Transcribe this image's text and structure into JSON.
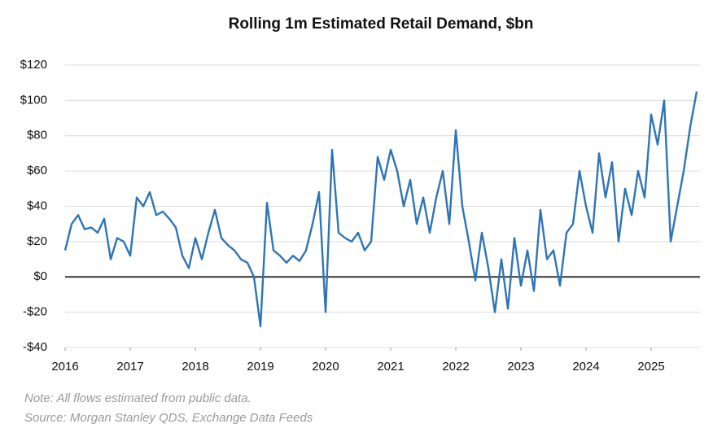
{
  "chart_data": {
    "type": "line",
    "title": "Rolling 1m Estimated Retail Demand, $bn",
    "note": "Note:  All flows estimated from public data.",
    "source": "Source: Morgan Stanley QDS, Exchange Data Feeds",
    "color": "#2e75b6",
    "grid": true,
    "xlim": [
      2016,
      2025.75
    ],
    "xticks": [
      2016,
      2017,
      2018,
      2019,
      2020,
      2021,
      2022,
      2023,
      2024,
      2025
    ],
    "ylim": [
      -40,
      120
    ],
    "yticks": [
      {
        "value": -40,
        "label": "-$40"
      },
      {
        "value": -20,
        "label": "-$20"
      },
      {
        "value": 0,
        "label": "$0"
      },
      {
        "value": 20,
        "label": "$20"
      },
      {
        "value": 40,
        "label": "$40"
      },
      {
        "value": 60,
        "label": "$60"
      },
      {
        "value": 80,
        "label": "$80"
      },
      {
        "value": 100,
        "label": "$100"
      },
      {
        "value": 120,
        "label": "$120"
      }
    ],
    "x": [
      2016.0,
      2016.1,
      2016.2,
      2016.3,
      2016.4,
      2016.5,
      2016.6,
      2016.7,
      2016.8,
      2016.9,
      2017.0,
      2017.1,
      2017.2,
      2017.3,
      2017.4,
      2017.5,
      2017.6,
      2017.7,
      2017.8,
      2017.9,
      2018.0,
      2018.1,
      2018.2,
      2018.3,
      2018.4,
      2018.5,
      2018.6,
      2018.7,
      2018.8,
      2018.9,
      2019.0,
      2019.1,
      2019.2,
      2019.3,
      2019.4,
      2019.5,
      2019.6,
      2019.7,
      2019.8,
      2019.9,
      2020.0,
      2020.1,
      2020.2,
      2020.3,
      2020.4,
      2020.5,
      2020.6,
      2020.7,
      2020.8,
      2020.9,
      2021.0,
      2021.1,
      2021.2,
      2021.3,
      2021.4,
      2021.5,
      2021.6,
      2021.7,
      2021.8,
      2021.9,
      2022.0,
      2022.1,
      2022.2,
      2022.3,
      2022.4,
      2022.5,
      2022.6,
      2022.7,
      2022.8,
      2022.9,
      2023.0,
      2023.1,
      2023.2,
      2023.3,
      2023.4,
      2023.5,
      2023.6,
      2023.7,
      2023.8,
      2023.9,
      2024.0,
      2024.1,
      2024.2,
      2024.3,
      2024.4,
      2024.5,
      2024.6,
      2024.7,
      2024.8,
      2024.9,
      2025.0,
      2025.1,
      2025.2,
      2025.3,
      2025.4,
      2025.5,
      2025.6,
      2025.7
    ],
    "values": [
      15,
      30,
      35,
      27,
      28,
      25,
      33,
      10,
      22,
      20,
      12,
      45,
      40,
      48,
      35,
      37,
      33,
      28,
      12,
      5,
      22,
      10,
      25,
      38,
      22,
      18,
      15,
      10,
      8,
      0,
      -28,
      42,
      15,
      12,
      8,
      12,
      9,
      15,
      30,
      48,
      -20,
      72,
      25,
      22,
      20,
      25,
      15,
      20,
      68,
      55,
      72,
      60,
      40,
      55,
      30,
      45,
      25,
      45,
      60,
      30,
      83,
      40,
      20,
      -2,
      25,
      5,
      -20,
      10,
      -18,
      22,
      -5,
      15,
      -8,
      38,
      10,
      15,
      -5,
      25,
      30,
      60,
      40,
      25,
      70,
      45,
      65,
      20,
      50,
      35,
      60,
      45,
      92,
      75,
      100,
      20,
      40,
      60,
      85,
      105
    ]
  }
}
